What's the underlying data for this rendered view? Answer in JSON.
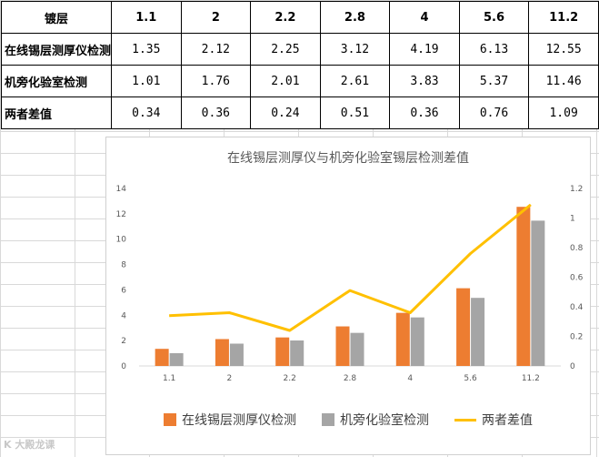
{
  "table": {
    "header_label": "镀层",
    "columns": [
      "1.1",
      "2",
      "2.2",
      "2.8",
      "4",
      "5.6",
      "11.2"
    ],
    "rows": [
      {
        "label": "在线锡层测厚仪检测",
        "values": [
          "1.35",
          "2.12",
          "2.25",
          "3.12",
          "4.19",
          "6.13",
          "12.55"
        ]
      },
      {
        "label": "机旁化验室检测",
        "values": [
          "1.01",
          "1.76",
          "2.01",
          "2.61",
          "3.83",
          "5.37",
          "11.46"
        ]
      },
      {
        "label": "两者差值",
        "values": [
          "0.34",
          "0.36",
          "0.24",
          "0.51",
          "0.36",
          "0.76",
          "1.09"
        ]
      }
    ]
  },
  "chart_data": {
    "type": "bar",
    "title": "在线锡层测厚仪与机旁化验室锡层检测差值",
    "categories": [
      "1.1",
      "2",
      "2.2",
      "2.8",
      "4",
      "5.6",
      "11.2"
    ],
    "series": [
      {
        "name": "在线锡层测厚仪检测",
        "type": "bar",
        "axis": "left",
        "color": "#ED7D31",
        "values": [
          1.35,
          2.12,
          2.25,
          3.12,
          4.19,
          6.13,
          12.55
        ]
      },
      {
        "name": "机旁化验室检测",
        "type": "bar",
        "axis": "left",
        "color": "#A5A5A5",
        "values": [
          1.01,
          1.76,
          2.01,
          2.61,
          3.83,
          5.37,
          11.46
        ]
      },
      {
        "name": "两者差值",
        "type": "line",
        "axis": "right",
        "color": "#FFC000",
        "values": [
          0.34,
          0.36,
          0.24,
          0.51,
          0.36,
          0.76,
          1.09
        ]
      }
    ],
    "y_left": {
      "range": [
        0,
        14
      ],
      "ticks": [
        "0",
        "2",
        "4",
        "6",
        "8",
        "10",
        "12",
        "14"
      ]
    },
    "y_right": {
      "range": [
        0,
        1.2
      ],
      "ticks": [
        "0",
        "0.2",
        "0.4",
        "0.6",
        "0.8",
        "1",
        "1.2"
      ]
    },
    "grid": false,
    "legend_position": "bottom"
  },
  "watermark": "K 大殿龙课"
}
